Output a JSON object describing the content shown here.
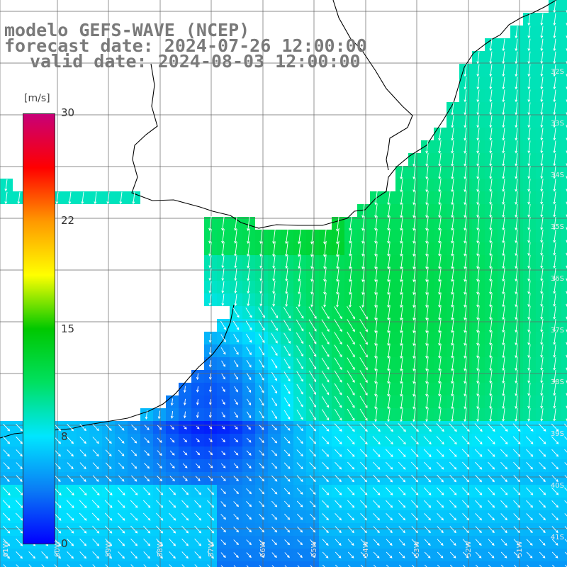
{
  "title": {
    "line1": "modelo GEFS-WAVE (NCEP)",
    "line2": "forecast date: 2024-07-26 12:00:00",
    "line3": "valid date: 2024-08-03 12:00:00"
  },
  "colorbar": {
    "unit": "[m/s]",
    "ticks": [
      "30",
      "22",
      "15",
      "8",
      "0"
    ],
    "range": [
      0,
      30
    ],
    "colors": [
      "#0000ff",
      "#0a7cf5",
      "#00e6ff",
      "#00e060",
      "#00c800",
      "#ffff00",
      "#ff9900",
      "#ff0000",
      "#c80078"
    ]
  },
  "axes": {
    "lat_labels": [
      "32S",
      "33S",
      "34S",
      "35S",
      "36S",
      "37S",
      "38S",
      "39S",
      "40S",
      "41S"
    ],
    "lon_labels": [
      "61W",
      "60W",
      "59W",
      "58W",
      "57W",
      "56W",
      "55W",
      "54W",
      "53W",
      "52W",
      "51W"
    ]
  },
  "colors": {
    "land": "#ffffff",
    "coast": "#000000",
    "grid": "#555555",
    "arrow": "#ffffff"
  }
}
